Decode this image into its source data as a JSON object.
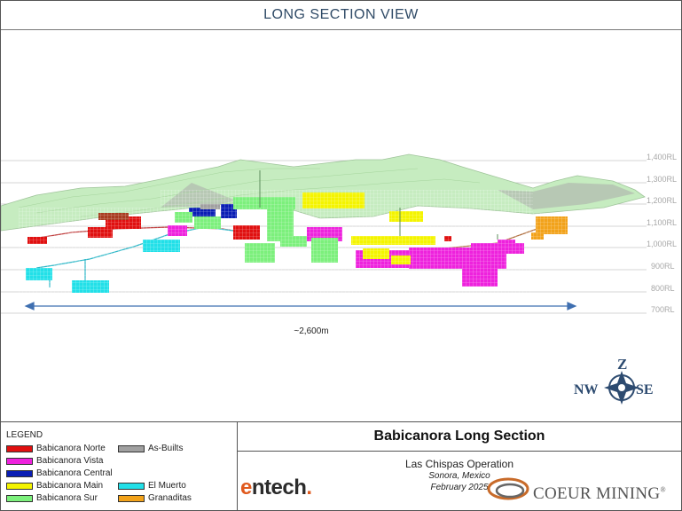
{
  "header": {
    "title": "LONG SECTION VIEW"
  },
  "elevations": [
    "1,400RL",
    "1,300RL",
    "1,200RL",
    "1,100RL",
    "1,000RL",
    "900RL",
    "800RL",
    "700RL"
  ],
  "scale": {
    "label": "~2,600m"
  },
  "compass": {
    "north": "Z",
    "west": "NW",
    "east": "SE"
  },
  "legend": {
    "title": "LEGEND",
    "items": [
      {
        "label": "Babicanora Norte",
        "color": "#e01010"
      },
      {
        "label": "Babicanora Vista",
        "color": "#ee22dd"
      },
      {
        "label": "Babicanora Central",
        "color": "#0a1eb4"
      },
      {
        "label": "Babicanora Main",
        "color": "#f4f400"
      },
      {
        "label": "Babicanora Sur",
        "color": "#7cf07c"
      },
      {
        "label": "As-Builts",
        "color": "#a0a0a0"
      },
      {
        "label": "El Muerto",
        "color": "#22e0e8"
      },
      {
        "label": "Granaditas",
        "color": "#f2a21a"
      }
    ]
  },
  "title_block": {
    "title": "Babicanora Long Section",
    "operation": "Las Chispas Operation",
    "location": "Sonora, Mexico",
    "date": "February 2025"
  },
  "logos": {
    "entech_prefix": "e",
    "entech_rest": "ntech",
    "entech_dot": ".",
    "coeur": "COEUR MINING",
    "coeur_mark": "®"
  }
}
